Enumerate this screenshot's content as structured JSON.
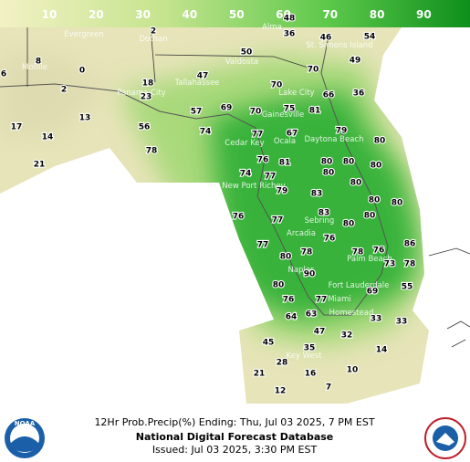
{
  "legend": {
    "labels": [
      10,
      20,
      30,
      40,
      50,
      60,
      70,
      80,
      90
    ]
  },
  "cities": [
    "Evergreen",
    "Dothan",
    "Alma",
    "Valdosta",
    "St. Simons Island",
    "Mobile",
    "Tallahassee",
    "Panama City",
    "Lake City",
    "Gainesville",
    "Ocala",
    "Daytona Beach",
    "Cedar Key",
    "New Port Richey",
    "Sebring",
    "Arcadia",
    "Palm Beach",
    "Naples",
    "Fort Lauderdale",
    "Miami",
    "Homestead",
    "Key West"
  ],
  "points": [
    48,
    36,
    46,
    54,
    50,
    70,
    49,
    47,
    70,
    66,
    36,
    18,
    23,
    57,
    69,
    70,
    75,
    81,
    13,
    56,
    74,
    77,
    67,
    79,
    14,
    17,
    78,
    76,
    81,
    80,
    80,
    80,
    80,
    74,
    77,
    80,
    79,
    80,
    83,
    80,
    80,
    21,
    76,
    77,
    83,
    80,
    80,
    76,
    86,
    77,
    78,
    80,
    78,
    76,
    73,
    78,
    90,
    80,
    55,
    69,
    76,
    77,
    64,
    63,
    33,
    33,
    47,
    32,
    45,
    35,
    14,
    28,
    10,
    21,
    16,
    12,
    7,
    8,
    0,
    2,
    6,
    2
  ],
  "footer": {
    "product": "12Hr Prob.Precip(%) Ending: Thu, Jul 03 2025, 7 PM EST",
    "database": "National Digital Forecast Database",
    "issued": "Issued: Jul 03 2025, 3:30 PM EST"
  },
  "logos": {
    "noaa": "NOAA"
  }
}
